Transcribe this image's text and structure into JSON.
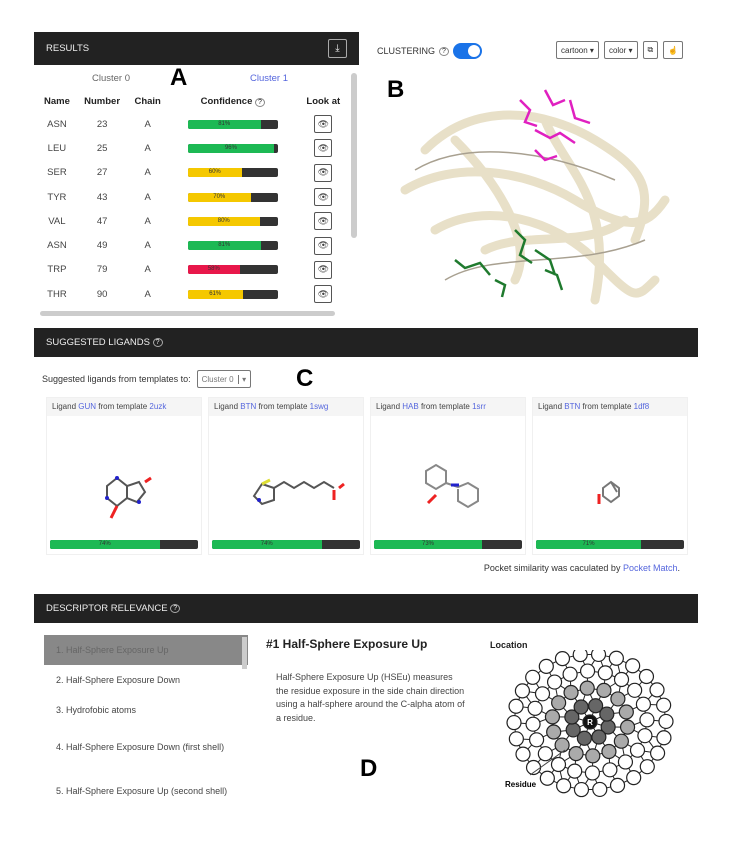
{
  "results": {
    "title": "RESULTS",
    "download_icon": "download-icon",
    "tabs": [
      "Cluster 0",
      "Cluster 1"
    ],
    "columns": [
      "Name",
      "Number",
      "Chain",
      "Confidence",
      "Look at"
    ],
    "rows": [
      {
        "name": "ASN",
        "number": "23",
        "chain": "A",
        "confidence": 81,
        "label": "81%",
        "color": "#1db954"
      },
      {
        "name": "LEU",
        "number": "25",
        "chain": "A",
        "confidence": 96,
        "label": "96%",
        "color": "#1db954"
      },
      {
        "name": "SER",
        "number": "27",
        "chain": "A",
        "confidence": 60,
        "label": "60%",
        "color": "#f5c800"
      },
      {
        "name": "TYR",
        "number": "43",
        "chain": "A",
        "confidence": 70,
        "label": "70%",
        "color": "#f5c800"
      },
      {
        "name": "VAL",
        "number": "47",
        "chain": "A",
        "confidence": 80,
        "label": "80%",
        "color": "#f5c800"
      },
      {
        "name": "ASN",
        "number": "49",
        "chain": "A",
        "confidence": 81,
        "label": "81%",
        "color": "#1db954"
      },
      {
        "name": "TRP",
        "number": "79",
        "chain": "A",
        "confidence": 58,
        "label": "58%",
        "color": "#e8174a"
      },
      {
        "name": "THR",
        "number": "90",
        "chain": "A",
        "confidence": 61,
        "label": "61%",
        "color": "#f5c800"
      }
    ]
  },
  "viewer": {
    "clustering_label": "CLUSTERING",
    "clustering_on": true,
    "style_select": "cartoon",
    "color_select": "color"
  },
  "letters": {
    "a": "A",
    "b": "B",
    "c": "C",
    "d": "D"
  },
  "ligands": {
    "title": "SUGGESTED LIGANDS",
    "from_label": "Suggested ligands from templates to:",
    "cluster_select": "Cluster 0",
    "items": [
      {
        "prefix": "Ligand",
        "code": "GUN",
        "mid": "from template",
        "template": "2uzk",
        "similarity": 74,
        "label": "74%"
      },
      {
        "prefix": "Ligand",
        "code": "BTN",
        "mid": "from template",
        "template": "1swg",
        "similarity": 74,
        "label": "74%"
      },
      {
        "prefix": "Ligand",
        "code": "HAB",
        "mid": "from template",
        "template": "1srr",
        "similarity": 73,
        "label": "73%"
      },
      {
        "prefix": "Ligand",
        "code": "BTN",
        "mid": "from template",
        "template": "1df8",
        "similarity": 71,
        "label": "71%"
      }
    ],
    "footer_text": "Pocket similarity was caculated by ",
    "footer_link": "Pocket Match",
    "footer_end": "."
  },
  "descriptor": {
    "title": "DESCRIPTOR RELEVANCE",
    "items": [
      "1. Half-Sphere Exposure Up",
      "2. Half-Sphere Exposure Down",
      "3. Hydrofobic atoms",
      "4. Half-Sphere Exposure Down (first shell)",
      "5. Half-Sphere Exposure Up (second shell)"
    ],
    "heading": "#1 Half-Sphere Exposure Up",
    "text": "Half-Sphere Exposure Up (HSEu) measures the residue exposure in the side chain direction using a half-sphere around the C-alpha atom of a residue.",
    "location_label": "Location",
    "residue_label": "Residue",
    "center_label": "R"
  }
}
